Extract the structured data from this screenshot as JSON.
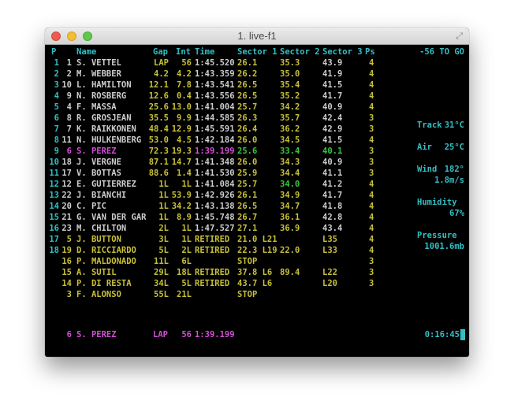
{
  "window": {
    "title": "1. live-f1"
  },
  "header": {
    "p": "P",
    "name": "Name",
    "gap": "Gap",
    "int": "Int",
    "time": "Time",
    "s1": "Sector 1",
    "s2": "Sector 2",
    "s3": "Sector 3",
    "ps": "Ps",
    "laps_to_go": "-56 TO GO"
  },
  "rows": [
    {
      "p": "1",
      "no": "1",
      "name": "S. VETTEL",
      "gap": "LAP",
      "int": "56",
      "time": "1:45.520",
      "s1": "26.1",
      "s2": "35.3",
      "s3": "43.9",
      "ps": "4",
      "nc": "wht",
      "gc": "yel",
      "tc": "wht",
      "s1c": "yel",
      "s2c": "yel",
      "s3c": "wht"
    },
    {
      "p": "2",
      "no": "2",
      "name": "M. WEBBER",
      "gap": "4.2",
      "int": "4.2",
      "time": "1:43.359",
      "s1": "26.2",
      "s2": "35.0",
      "s3": "41.9",
      "ps": "4",
      "nc": "wht",
      "gc": "yel",
      "tc": "wht",
      "s1c": "yel",
      "s2c": "yel",
      "s3c": "wht"
    },
    {
      "p": "3",
      "no": "10",
      "name": "L. HAMILTON",
      "gap": "12.1",
      "int": "7.8",
      "time": "1:43.541",
      "s1": "26.5",
      "s2": "35.4",
      "s3": "41.5",
      "ps": "4",
      "nc": "wht",
      "gc": "yel",
      "tc": "wht",
      "s1c": "yel",
      "s2c": "yel",
      "s3c": "wht"
    },
    {
      "p": "4",
      "no": "9",
      "name": "N. ROSBERG",
      "gap": "12.6",
      "int": "0.4",
      "time": "1:43.556",
      "s1": "26.5",
      "s2": "35.2",
      "s3": "41.7",
      "ps": "4",
      "nc": "wht",
      "gc": "yel",
      "tc": "wht",
      "s1c": "yel",
      "s2c": "yel",
      "s3c": "wht"
    },
    {
      "p": "5",
      "no": "4",
      "name": "F. MASSA",
      "gap": "25.6",
      "int": "13.0",
      "time": "1:41.004",
      "s1": "25.7",
      "s2": "34.2",
      "s3": "40.9",
      "ps": "4",
      "nc": "wht",
      "gc": "yel",
      "tc": "wht",
      "s1c": "yel",
      "s2c": "yel",
      "s3c": "wht"
    },
    {
      "p": "6",
      "no": "8",
      "name": "R. GROSJEAN",
      "gap": "35.5",
      "int": "9.9",
      "time": "1:44.585",
      "s1": "26.3",
      "s2": "35.7",
      "s3": "42.4",
      "ps": "3",
      "nc": "wht",
      "gc": "yel",
      "tc": "wht",
      "s1c": "yel",
      "s2c": "yel",
      "s3c": "wht"
    },
    {
      "p": "7",
      "no": "7",
      "name": "K. RAIKKONEN",
      "gap": "48.4",
      "int": "12.9",
      "time": "1:45.591",
      "s1": "26.4",
      "s2": "36.2",
      "s3": "42.9",
      "ps": "3",
      "nc": "wht",
      "gc": "yel",
      "tc": "wht",
      "s1c": "yel",
      "s2c": "yel",
      "s3c": "wht"
    },
    {
      "p": "8",
      "no": "11",
      "name": "N. HULKENBERG",
      "gap": "53.0",
      "int": "4.5",
      "time": "1:42.184",
      "s1": "26.0",
      "s2": "34.5",
      "s3": "41.5",
      "ps": "4",
      "nc": "wht",
      "gc": "yel",
      "tc": "wht",
      "s1c": "yel",
      "s2c": "yel",
      "s3c": "wht"
    },
    {
      "p": "9",
      "no": "6",
      "name": "S. PEREZ",
      "gap": "72.3",
      "int": "19.3",
      "time": "1:39.199",
      "s1": "25.6",
      "s2": "33.4",
      "s3": "40.1",
      "ps": "3",
      "nc": "mag",
      "gc": "yel",
      "tc": "mag",
      "s1c": "grn",
      "s2c": "grn",
      "s3c": "grn"
    },
    {
      "p": "10",
      "no": "18",
      "name": "J. VERGNE",
      "gap": "87.1",
      "int": "14.7",
      "time": "1:41.348",
      "s1": "26.0",
      "s2": "34.3",
      "s3": "40.9",
      "ps": "3",
      "nc": "wht",
      "gc": "yel",
      "tc": "wht",
      "s1c": "yel",
      "s2c": "yel",
      "s3c": "wht"
    },
    {
      "p": "11",
      "no": "17",
      "name": "V. BOTTAS",
      "gap": "88.6",
      "int": "1.4",
      "time": "1:41.530",
      "s1": "25.9",
      "s2": "34.4",
      "s3": "41.1",
      "ps": "3",
      "nc": "wht",
      "gc": "yel",
      "tc": "wht",
      "s1c": "yel",
      "s2c": "yel",
      "s3c": "wht"
    },
    {
      "p": "12",
      "no": "12",
      "name": "E. GUTIERREZ",
      "gap": "1L",
      "int": "1L",
      "time": "1:41.084",
      "s1": "25.7",
      "s2": "34.0",
      "s3": "41.2",
      "ps": "4",
      "nc": "wht",
      "gc": "yel",
      "tc": "wht",
      "s1c": "yel",
      "s2c": "grn",
      "s3c": "wht"
    },
    {
      "p": "13",
      "no": "22",
      "name": "J. BIANCHI",
      "gap": "1L",
      "int": "53.9",
      "time": "1:42.926",
      "s1": "26.1",
      "s2": "34.9",
      "s3": "41.7",
      "ps": "4",
      "nc": "wht",
      "gc": "yel",
      "tc": "wht",
      "s1c": "yel",
      "s2c": "yel",
      "s3c": "wht"
    },
    {
      "p": "14",
      "no": "20",
      "name": "C. PIC",
      "gap": "1L",
      "int": "34.2",
      "time": "1:43.138",
      "s1": "26.5",
      "s2": "34.7",
      "s3": "41.8",
      "ps": "4",
      "nc": "wht",
      "gc": "yel",
      "tc": "wht",
      "s1c": "yel",
      "s2c": "yel",
      "s3c": "wht"
    },
    {
      "p": "15",
      "no": "21",
      "name": "G. VAN DER GAR",
      "gap": "1L",
      "int": "8.9",
      "time": "1:45.748",
      "s1": "26.7",
      "s2": "36.1",
      "s3": "42.8",
      "ps": "4",
      "nc": "wht",
      "gc": "yel",
      "tc": "wht",
      "s1c": "yel",
      "s2c": "yel",
      "s3c": "wht"
    },
    {
      "p": "16",
      "no": "23",
      "name": "M. CHILTON",
      "gap": "2L",
      "int": "1L",
      "time": "1:47.527",
      "s1": "27.1",
      "s2": "36.9",
      "s3": "43.4",
      "ps": "4",
      "nc": "wht",
      "gc": "yel",
      "tc": "wht",
      "s1c": "yel",
      "s2c": "yel",
      "s3c": "wht"
    },
    {
      "p": "17",
      "no": "5",
      "name": "J. BUTTON",
      "gap": "3L",
      "int": "1L",
      "time": "RETIRED",
      "s1": "21.0 L21",
      "s2": "",
      "s3": "L35",
      "ps": "4",
      "nc": "yel",
      "gc": "yel",
      "tc": "yel",
      "s1c": "yel",
      "s2c": "yel",
      "s3c": "yel"
    },
    {
      "p": "18",
      "no": "19",
      "name": "D. RICCIARDO",
      "gap": "5L",
      "int": "2L",
      "time": "RETIRED",
      "s1": "22.3 L19",
      "s2": "22.0",
      "s3": "L33",
      "ps": "4",
      "nc": "yel",
      "gc": "yel",
      "tc": "yel",
      "s1c": "yel",
      "s2c": "yel",
      "s3c": "yel"
    },
    {
      "p": "",
      "no": "16",
      "name": "P. MALDONADO",
      "gap": "11L",
      "int": "6L",
      "time": "",
      "s1": "STOP",
      "s2": "",
      "s3": "",
      "ps": "3",
      "nc": "yel",
      "gc": "yel",
      "tc": "yel",
      "s1c": "yel",
      "s2c": "yel",
      "s3c": "yel"
    },
    {
      "p": "",
      "no": "15",
      "name": "A. SUTIL",
      "gap": "29L",
      "int": "18L",
      "time": "RETIRED",
      "s1": "37.8 L6",
      "s2": "89.4",
      "s3": "L22",
      "ps": "3",
      "nc": "yel",
      "gc": "yel",
      "tc": "yel",
      "s1c": "yel",
      "s2c": "yel",
      "s3c": "yel"
    },
    {
      "p": "",
      "no": "14",
      "name": "P. DI RESTA",
      "gap": "34L",
      "int": "5L",
      "time": "RETIRED",
      "s1": "43.7 L6",
      "s2": "",
      "s3": "L20",
      "ps": "3",
      "nc": "yel",
      "gc": "yel",
      "tc": "yel",
      "s1c": "yel",
      "s2c": "yel",
      "s3c": "yel"
    },
    {
      "p": "",
      "no": "3",
      "name": "F. ALONSO",
      "gap": "55L",
      "int": "21L",
      "time": "",
      "s1": "STOP",
      "s2": "",
      "s3": "",
      "ps": "",
      "nc": "yel",
      "gc": "yel",
      "tc": "yel",
      "s1c": "yel",
      "s2c": "yel",
      "s3c": "yel"
    }
  ],
  "info": {
    "track_label": "Track",
    "track_value": "31°C",
    "air_label": "Air",
    "air_value": "25°C",
    "wind_label": "Wind",
    "wind_dir": "182°",
    "wind_speed": "1.8m/s",
    "humidity_label": "Humidity",
    "humidity_value": "67%",
    "pressure_label": "Pressure",
    "pressure_value": "1001.6mb"
  },
  "fastest": {
    "no": "6",
    "name": "S. PEREZ",
    "gap": "LAP",
    "int": "56",
    "time": "1:39.199"
  },
  "clock": "0:16:45",
  "colors": {
    "cyan": "#33bfc4",
    "yellow": "#c8c13a",
    "white": "#cdcdcd",
    "magenta": "#d34fd4",
    "green": "#37c93a"
  }
}
